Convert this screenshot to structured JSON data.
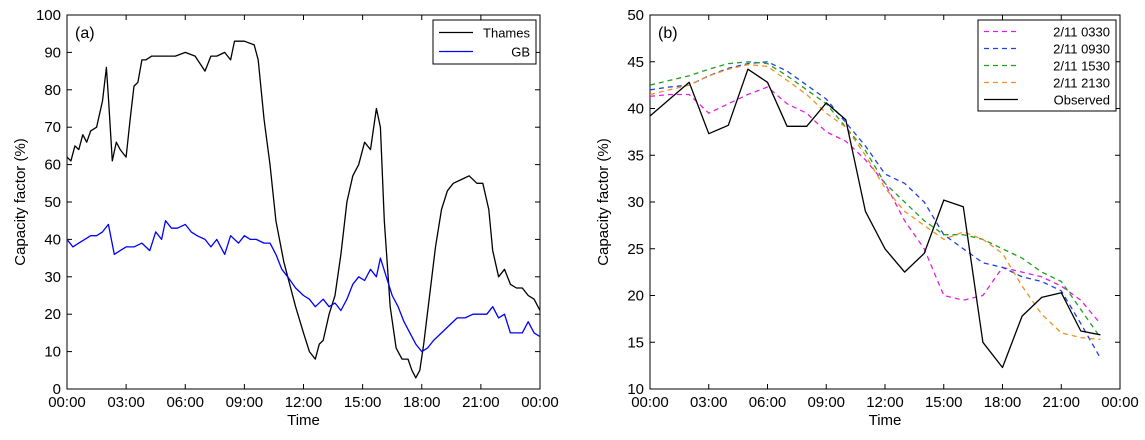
{
  "chart_data": [
    {
      "type": "line",
      "panel_label": "(a)",
      "xlabel": "Time",
      "ylabel": "Capacity factor (%)",
      "xlim": [
        0,
        24
      ],
      "ylim": [
        0,
        100
      ],
      "x_ticks": [
        {
          "value": 0,
          "label": "00:00"
        },
        {
          "value": 3,
          "label": "03:00"
        },
        {
          "value": 6,
          "label": "06:00"
        },
        {
          "value": 9,
          "label": "09:00"
        },
        {
          "value": 12,
          "label": "12:00"
        },
        {
          "value": 15,
          "label": "15:00"
        },
        {
          "value": 18,
          "label": "18:00"
        },
        {
          "value": 21,
          "label": "21:00"
        },
        {
          "value": 24,
          "label": "00:00"
        }
      ],
      "y_ticks": [
        {
          "value": 0,
          "label": "0"
        },
        {
          "value": 10,
          "label": "10"
        },
        {
          "value": 20,
          "label": "20"
        },
        {
          "value": 30,
          "label": "30"
        },
        {
          "value": 40,
          "label": "40"
        },
        {
          "value": 50,
          "label": "50"
        },
        {
          "value": 60,
          "label": "60"
        },
        {
          "value": 70,
          "label": "70"
        },
        {
          "value": 80,
          "label": "80"
        },
        {
          "value": 90,
          "label": "90"
        },
        {
          "value": 100,
          "label": "100"
        }
      ],
      "grid": false,
      "legend_position": "top-right",
      "series": [
        {
          "name": "Thames",
          "color": "#000000",
          "dash": "",
          "x": [
            0,
            0.2,
            0.4,
            0.6,
            0.8,
            1.0,
            1.2,
            1.5,
            1.8,
            2.0,
            2.1,
            2.3,
            2.5,
            2.7,
            3.0,
            3.2,
            3.4,
            3.6,
            3.8,
            4.0,
            4.3,
            4.6,
            5.0,
            5.5,
            6.0,
            6.5,
            7.0,
            7.3,
            7.6,
            8.0,
            8.3,
            8.5,
            9.0,
            9.5,
            9.7,
            10.0,
            10.3,
            10.6,
            11.0,
            11.3,
            11.6,
            12.0,
            12.3,
            12.6,
            12.8,
            13.0,
            13.3,
            13.6,
            13.9,
            14.2,
            14.5,
            14.8,
            15.1,
            15.4,
            15.7,
            15.9,
            16.1,
            16.4,
            16.7,
            17.0,
            17.3,
            17.5,
            17.7,
            17.9,
            18.1,
            18.4,
            18.7,
            19.0,
            19.3,
            19.6,
            20.0,
            20.4,
            20.8,
            21.1,
            21.4,
            21.6,
            21.9,
            22.2,
            22.5,
            22.8,
            23.1,
            23.4,
            23.7,
            24.0
          ],
          "y": [
            62,
            61,
            65,
            64,
            68,
            66,
            69,
            70,
            77,
            86,
            78,
            61,
            66,
            64,
            62,
            72,
            81,
            82,
            88,
            88,
            89,
            89,
            89,
            89,
            90,
            89,
            85,
            89,
            89,
            90,
            88,
            93,
            93,
            92,
            88,
            72,
            60,
            45,
            34,
            28,
            22,
            15,
            10,
            8,
            12,
            13,
            20,
            25,
            36,
            50,
            57,
            60,
            66,
            64,
            75,
            70,
            45,
            22,
            11,
            8,
            8,
            5,
            3,
            5,
            12,
            25,
            38,
            48,
            53,
            55,
            56,
            57,
            55,
            55,
            48,
            37,
            30,
            32,
            28,
            27,
            27,
            25,
            24,
            21
          ]
        },
        {
          "name": "GB",
          "color": "#0000ff",
          "dash": "",
          "x": [
            0,
            0.3,
            0.6,
            0.9,
            1.2,
            1.5,
            1.8,
            2.1,
            2.4,
            2.7,
            3.0,
            3.4,
            3.8,
            4.2,
            4.5,
            4.8,
            5.0,
            5.3,
            5.6,
            6.0,
            6.3,
            6.6,
            7.0,
            7.3,
            7.6,
            8.0,
            8.3,
            8.7,
            9.0,
            9.3,
            9.6,
            10.0,
            10.3,
            10.6,
            10.9,
            11.2,
            11.6,
            12.0,
            12.3,
            12.6,
            13.0,
            13.3,
            13.6,
            13.9,
            14.2,
            14.5,
            14.8,
            15.1,
            15.4,
            15.7,
            15.9,
            16.2,
            16.5,
            16.8,
            17.1,
            17.4,
            17.7,
            18.0,
            18.3,
            18.6,
            19.0,
            19.4,
            19.8,
            20.2,
            20.6,
            21.0,
            21.3,
            21.6,
            21.9,
            22.2,
            22.5,
            22.8,
            23.1,
            23.4,
            23.7,
            24.0
          ],
          "y": [
            40,
            38,
            39,
            40,
            41,
            41,
            42,
            44,
            36,
            37,
            38,
            38,
            39,
            37,
            42,
            40,
            45,
            43,
            43,
            44,
            42,
            41,
            40,
            38,
            40,
            36,
            41,
            39,
            41,
            40,
            40,
            39,
            39,
            36,
            32,
            30,
            27,
            25,
            24,
            22,
            24,
            22,
            23,
            21,
            24,
            28,
            30,
            29,
            32,
            30,
            35,
            30,
            25,
            22,
            18,
            15,
            12,
            10,
            11,
            13,
            15,
            17,
            19,
            19,
            20,
            20,
            20,
            22,
            19,
            20,
            15,
            15,
            15,
            18,
            15,
            14
          ]
        }
      ]
    },
    {
      "type": "line",
      "panel_label": "(b)",
      "xlabel": "Time",
      "ylabel": "Capacity factor (%)",
      "xlim": [
        0,
        24
      ],
      "ylim": [
        10,
        50
      ],
      "x_ticks": [
        {
          "value": 0,
          "label": "00:00"
        },
        {
          "value": 3,
          "label": "03:00"
        },
        {
          "value": 6,
          "label": "06:00"
        },
        {
          "value": 9,
          "label": "09:00"
        },
        {
          "value": 12,
          "label": "12:00"
        },
        {
          "value": 15,
          "label": "15:00"
        },
        {
          "value": 18,
          "label": "18:00"
        },
        {
          "value": 21,
          "label": "21:00"
        },
        {
          "value": 24,
          "label": "00:00"
        }
      ],
      "y_ticks": [
        {
          "value": 10,
          "label": "10"
        },
        {
          "value": 15,
          "label": "15"
        },
        {
          "value": 20,
          "label": "20"
        },
        {
          "value": 25,
          "label": "25"
        },
        {
          "value": 30,
          "label": "30"
        },
        {
          "value": 35,
          "label": "35"
        },
        {
          "value": 40,
          "label": "40"
        },
        {
          "value": 45,
          "label": "45"
        },
        {
          "value": 50,
          "label": "50"
        }
      ],
      "grid": false,
      "legend_position": "top-right",
      "series": [
        {
          "name": "2/11 0330",
          "color": "#e020e0",
          "dash": "5,4",
          "x": [
            0,
            1,
            2,
            3,
            4,
            5,
            6,
            7,
            8,
            9,
            10,
            11,
            12,
            13,
            14,
            15,
            16,
            17,
            18,
            19,
            20,
            21,
            22,
            23
          ],
          "y": [
            41.3,
            41.5,
            41.5,
            39.5,
            40.5,
            41.5,
            42.3,
            40.5,
            39.5,
            37.5,
            36.5,
            34.5,
            32.0,
            28.0,
            25.0,
            20.0,
            19.5,
            20.0,
            23.0,
            22.5,
            22.0,
            21.0,
            19.5,
            17.0
          ]
        },
        {
          "name": "2/11 0930",
          "color": "#2040e0",
          "dash": "5,4",
          "x": [
            0,
            1,
            2,
            3,
            4,
            5,
            6,
            7,
            8,
            9,
            10,
            11,
            12,
            13,
            14,
            15,
            16,
            17,
            18,
            19,
            20,
            21,
            22,
            23
          ],
          "y": [
            42.0,
            42.3,
            42.5,
            43.5,
            44.3,
            44.8,
            45.0,
            44.0,
            42.5,
            41.0,
            38.5,
            36.0,
            33.0,
            32.0,
            30.0,
            26.5,
            25.0,
            23.5,
            23.0,
            22.0,
            21.5,
            20.5,
            17.0,
            13.3
          ]
        },
        {
          "name": "2/11 1530",
          "color": "#20a020",
          "dash": "5,4",
          "x": [
            0,
            1,
            2,
            3,
            4,
            5,
            6,
            7,
            8,
            9,
            10,
            11,
            12,
            13,
            14,
            15,
            16,
            17,
            18,
            19,
            20,
            21,
            22,
            23
          ],
          "y": [
            42.5,
            43.0,
            43.5,
            44.2,
            44.8,
            45.0,
            44.8,
            43.5,
            42.0,
            40.5,
            38.0,
            35.5,
            32.0,
            30.0,
            28.0,
            26.5,
            26.5,
            26.0,
            25.0,
            24.0,
            22.5,
            21.5,
            18.5,
            15.5
          ]
        },
        {
          "name": "2/11 2130",
          "color": "#f09020",
          "dash": "5,4",
          "x": [
            0,
            1,
            2,
            3,
            4,
            5,
            6,
            7,
            8,
            9,
            10,
            11,
            12,
            13,
            14,
            15,
            16,
            17,
            18,
            19,
            20,
            21,
            22,
            23
          ],
          "y": [
            41.5,
            42.0,
            42.5,
            43.5,
            44.2,
            44.7,
            44.5,
            43.0,
            41.5,
            39.5,
            38.0,
            35.0,
            31.5,
            29.0,
            27.5,
            26.0,
            26.8,
            26.0,
            24.5,
            21.0,
            18.0,
            16.0,
            15.5,
            15.3
          ]
        },
        {
          "name": "Observed",
          "color": "#000000",
          "dash": "",
          "x": [
            0,
            1,
            2,
            3,
            4,
            5,
            6,
            7,
            8,
            9,
            10,
            11,
            12,
            13,
            14,
            15,
            16,
            17,
            18,
            19,
            20,
            21,
            22,
            23
          ],
          "y": [
            39.2,
            41.0,
            42.8,
            37.3,
            38.2,
            44.2,
            42.8,
            38.1,
            38.1,
            40.6,
            38.8,
            29.0,
            25.0,
            22.5,
            24.5,
            30.2,
            29.5,
            15.0,
            12.3,
            17.8,
            19.8,
            20.3,
            16.2,
            15.8
          ]
        }
      ]
    }
  ]
}
